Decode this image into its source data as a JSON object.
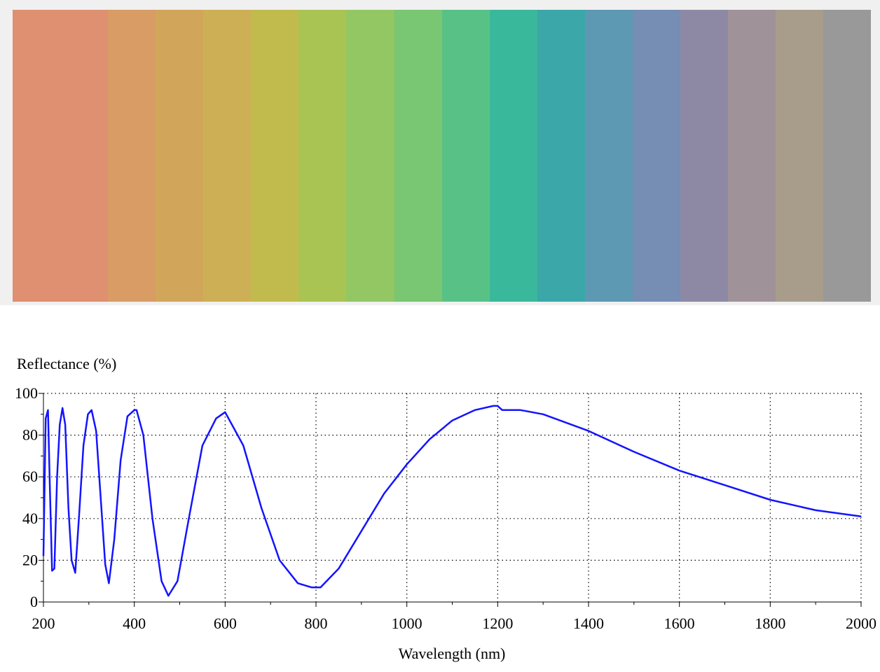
{
  "swatches": {
    "colors": [
      "#de9070",
      "#de9070",
      "#d89c64",
      "#d2a65a",
      "#cdb055",
      "#c1bb4e",
      "#a9c452",
      "#92c763",
      "#79c673",
      "#58c286",
      "#3ab89b",
      "#3ba7a9",
      "#5d99b2",
      "#768db4",
      "#8d89a5",
      "#a09299",
      "#a89d8b",
      "#999999"
    ]
  },
  "chart_data": {
    "type": "line",
    "ylabel": "Reflectance (%)",
    "xlabel": "Wavelength (nm)",
    "xlim": [
      200,
      2000
    ],
    "ylim": [
      0,
      100
    ],
    "x_ticks": [
      200,
      400,
      600,
      800,
      1000,
      1200,
      1400,
      1600,
      1800,
      2000
    ],
    "y_ticks": [
      0,
      20,
      40,
      60,
      80,
      100
    ],
    "grid": true,
    "line_color": "#1414ff",
    "series": [
      {
        "x": [
          200,
          205,
          210,
          214,
          219,
          224,
          230,
          236,
          242,
          248,
          255,
          262,
          270,
          278,
          288,
          298,
          306,
          316,
          326,
          336,
          344,
          356,
          370,
          385,
          400,
          405,
          420,
          440,
          460,
          475,
          495,
          520,
          550,
          580,
          600,
          640,
          680,
          720,
          760,
          790,
          810,
          850,
          900,
          950,
          1000,
          1050,
          1100,
          1150,
          1190,
          1200,
          1210,
          1250,
          1300,
          1400,
          1500,
          1600,
          1700,
          1800,
          1900,
          2000
        ],
        "y": [
          22,
          88,
          92,
          56,
          15,
          16,
          60,
          85,
          93,
          85,
          45,
          20,
          14,
          40,
          75,
          90,
          92,
          82,
          50,
          18,
          9,
          30,
          68,
          89,
          92,
          92,
          80,
          40,
          10,
          3,
          10,
          40,
          75,
          88,
          91,
          75,
          45,
          20,
          9,
          7,
          7,
          16,
          34,
          52,
          66,
          78,
          87,
          92,
          94,
          94,
          92,
          92,
          90,
          82,
          72,
          63,
          56,
          49,
          44,
          41
        ]
      }
    ]
  }
}
